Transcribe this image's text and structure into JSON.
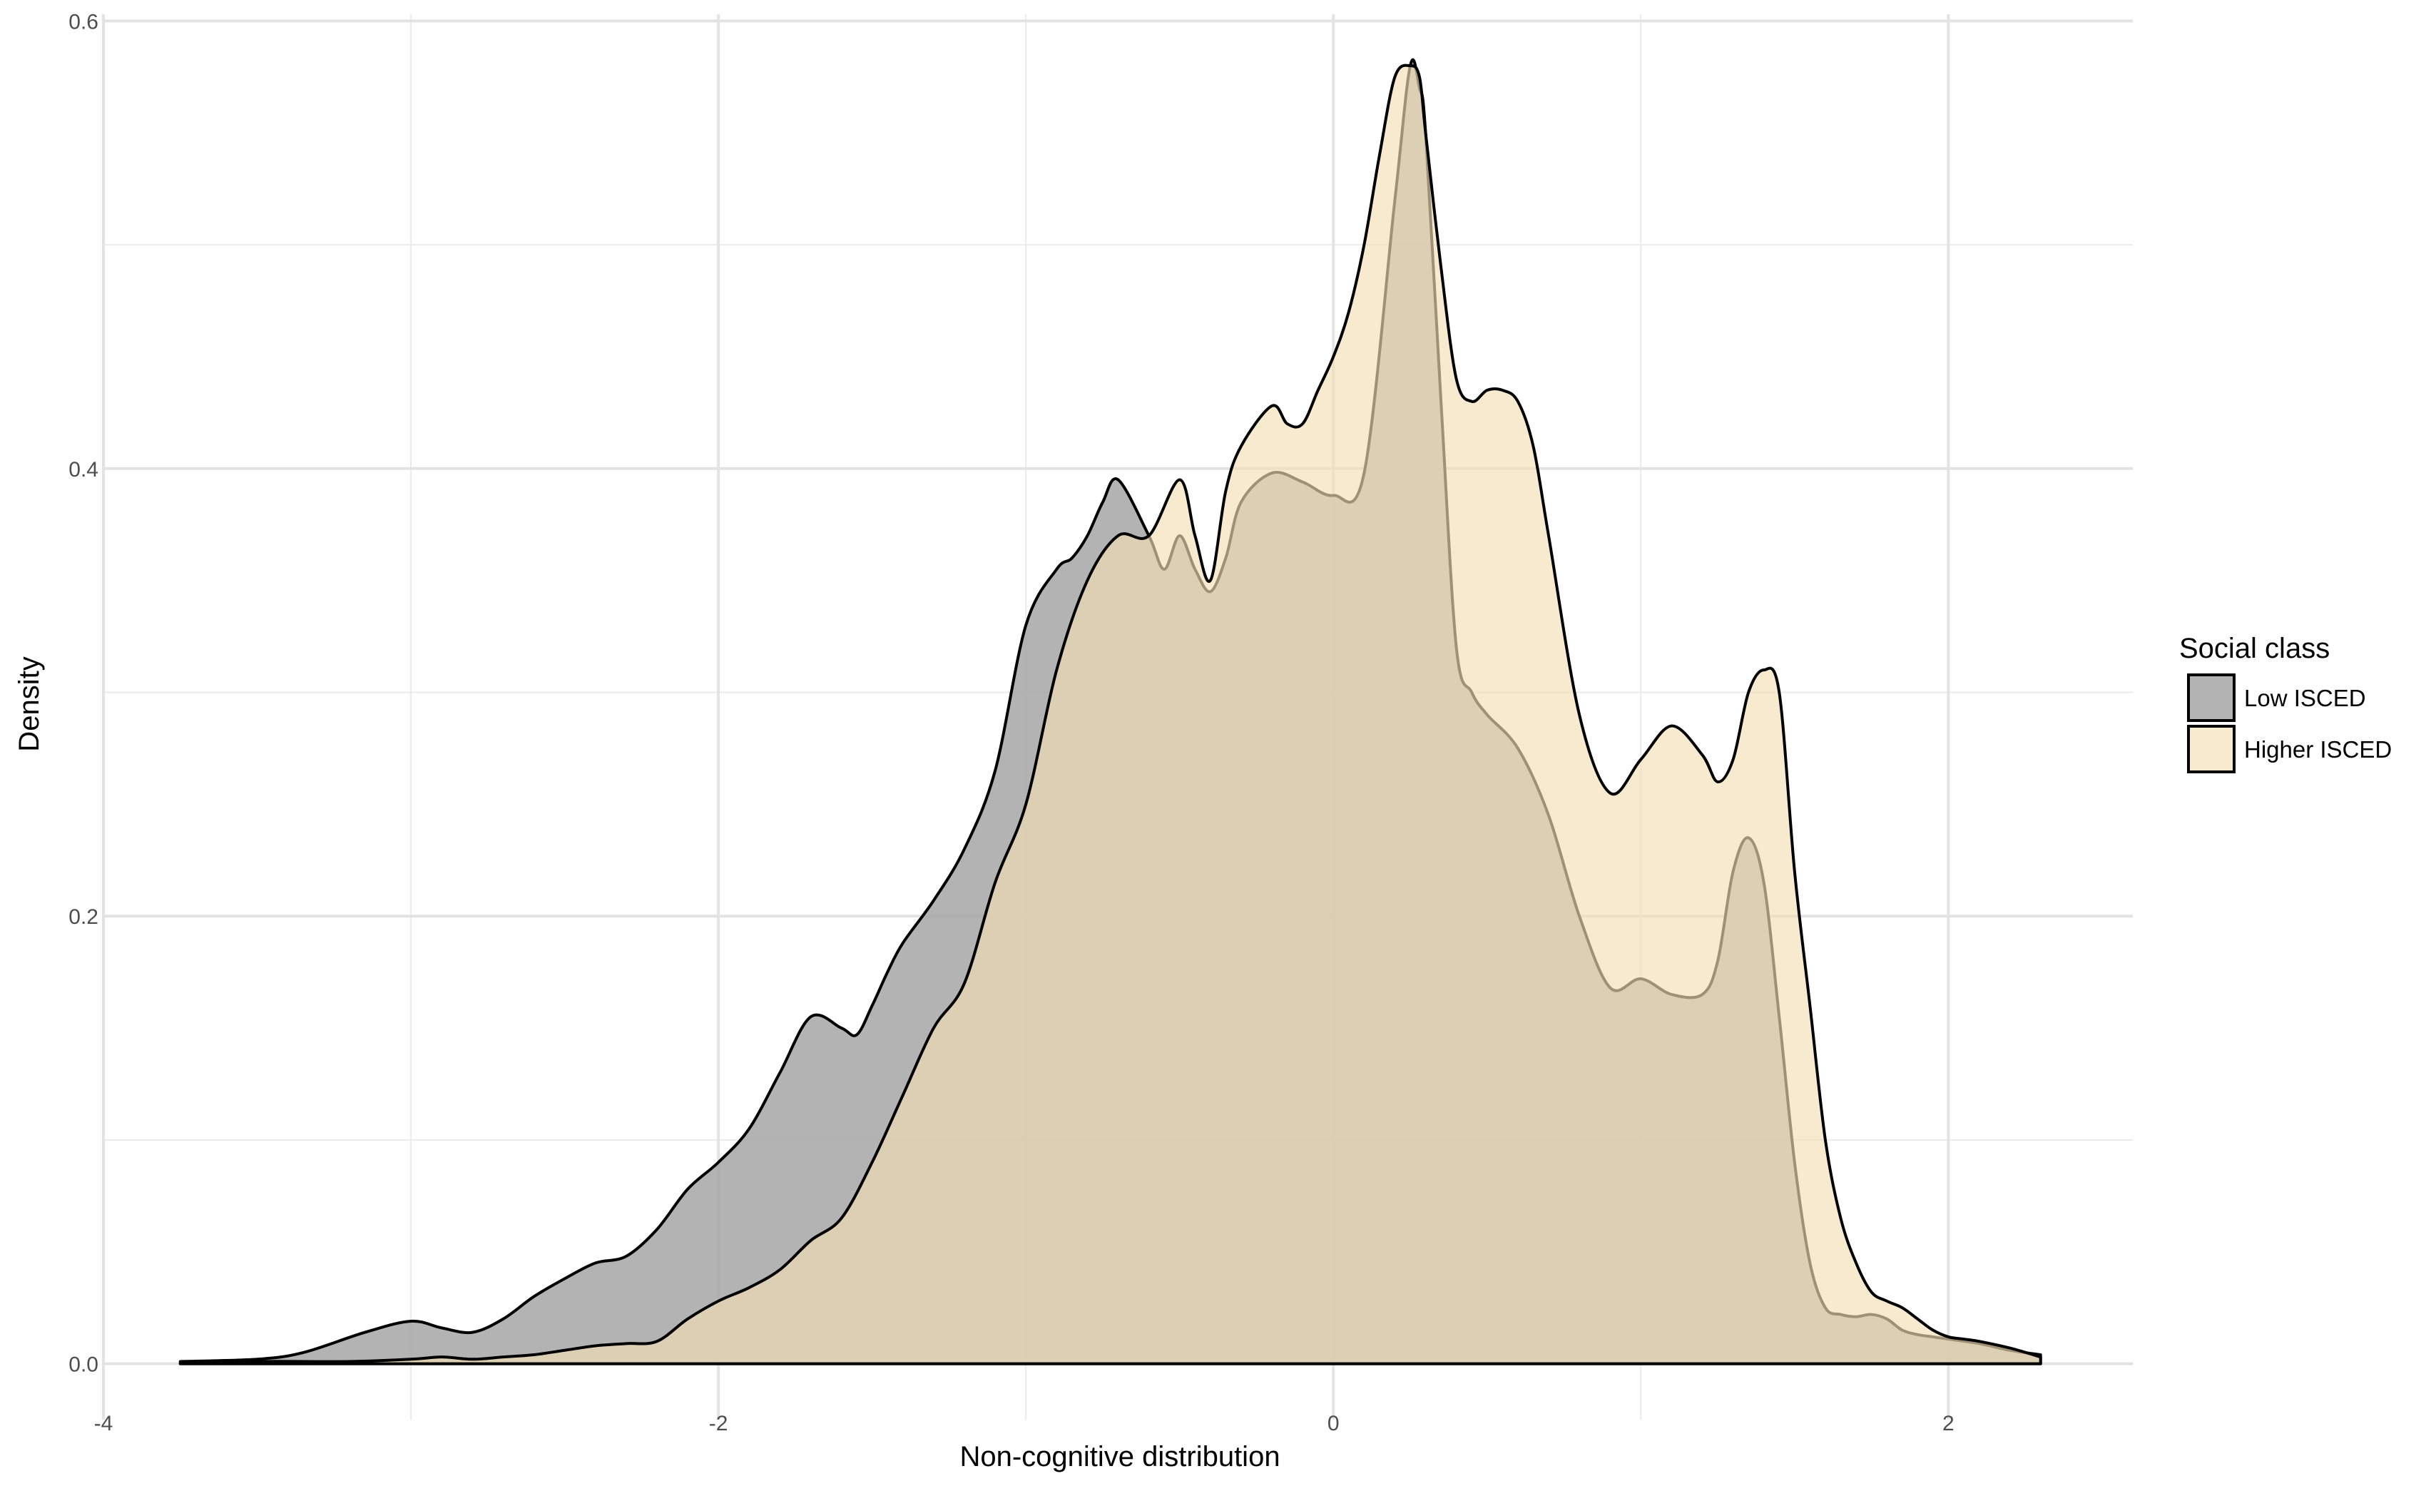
{
  "chart_data": {
    "type": "area",
    "title": "",
    "xlabel": "Non-cognitive distribution",
    "ylabel": "Density",
    "xlim": [
      -4,
      2.6
    ],
    "ylim": [
      -0.025,
      0.603
    ],
    "x_ticks": [
      -4,
      -2,
      0,
      2
    ],
    "x_tick_labels": [
      "-4",
      "-2",
      "0",
      "2"
    ],
    "y_ticks": [
      0.0,
      0.2,
      0.4,
      0.6
    ],
    "y_tick_labels": [
      "0.0",
      "0.2",
      "0.4",
      "0.6"
    ],
    "grid": true,
    "legend_position": "right",
    "legend_title": "Social class",
    "series": [
      {
        "name": "Low ISCED",
        "fill": "#a6a6a6",
        "fill_opacity": 0.85,
        "stroke": "#000000",
        "x": [
          -3.75,
          -3.5,
          -3.35,
          -3.15,
          -3.0,
          -2.9,
          -2.8,
          -2.7,
          -2.6,
          -2.5,
          -2.4,
          -2.3,
          -2.2,
          -2.1,
          -2.0,
          -1.9,
          -1.8,
          -1.7,
          -1.6,
          -1.55,
          -1.5,
          -1.45,
          -1.4,
          -1.3,
          -1.2,
          -1.1,
          -1.0,
          -0.9,
          -0.85,
          -0.8,
          -0.75,
          -0.7,
          -0.6,
          -0.55,
          -0.5,
          -0.45,
          -0.4,
          -0.35,
          -0.3,
          -0.2,
          -0.1,
          0.0,
          0.1,
          0.2,
          0.25,
          0.28,
          0.3,
          0.35,
          0.4,
          0.45,
          0.5,
          0.6,
          0.7,
          0.8,
          0.9,
          1.0,
          1.1,
          1.2,
          1.25,
          1.3,
          1.35,
          1.4,
          1.45,
          1.5,
          1.55,
          1.6,
          1.65,
          1.7,
          1.75,
          1.8,
          1.85,
          1.9,
          1.95,
          2.0,
          2.1,
          2.2,
          2.3
        ],
        "values": [
          0.001,
          0.002,
          0.005,
          0.014,
          0.019,
          0.016,
          0.014,
          0.02,
          0.03,
          0.038,
          0.045,
          0.048,
          0.06,
          0.078,
          0.09,
          0.105,
          0.13,
          0.155,
          0.15,
          0.147,
          0.16,
          0.175,
          0.188,
          0.207,
          0.23,
          0.265,
          0.33,
          0.355,
          0.36,
          0.37,
          0.385,
          0.395,
          0.37,
          0.355,
          0.37,
          0.355,
          0.345,
          0.36,
          0.385,
          0.398,
          0.394,
          0.388,
          0.398,
          0.52,
          0.58,
          0.57,
          0.55,
          0.43,
          0.32,
          0.3,
          0.29,
          0.275,
          0.245,
          0.2,
          0.168,
          0.172,
          0.165,
          0.165,
          0.18,
          0.22,
          0.235,
          0.215,
          0.155,
          0.09,
          0.045,
          0.025,
          0.022,
          0.021,
          0.022,
          0.02,
          0.015,
          0.013,
          0.012,
          0.011,
          0.009,
          0.006,
          0.004
        ]
      },
      {
        "name": "Higher ISCED",
        "fill": "#f5deb3",
        "fill_opacity": 0.65,
        "stroke": "#000000",
        "x": [
          -3.75,
          -3.5,
          -3.2,
          -3.0,
          -2.9,
          -2.8,
          -2.7,
          -2.6,
          -2.5,
          -2.4,
          -2.3,
          -2.2,
          -2.1,
          -2.0,
          -1.9,
          -1.8,
          -1.7,
          -1.6,
          -1.5,
          -1.4,
          -1.3,
          -1.2,
          -1.1,
          -1.0,
          -0.9,
          -0.8,
          -0.7,
          -0.6,
          -0.5,
          -0.45,
          -0.4,
          -0.35,
          -0.3,
          -0.2,
          -0.15,
          -0.1,
          -0.05,
          0.0,
          0.05,
          0.1,
          0.15,
          0.2,
          0.25,
          0.28,
          0.3,
          0.35,
          0.4,
          0.45,
          0.5,
          0.55,
          0.6,
          0.65,
          0.7,
          0.8,
          0.9,
          1.0,
          1.1,
          1.2,
          1.25,
          1.3,
          1.35,
          1.4,
          1.45,
          1.5,
          1.55,
          1.6,
          1.65,
          1.7,
          1.75,
          1.8,
          1.85,
          1.9,
          1.95,
          2.0,
          2.05,
          2.1,
          2.2,
          2.3
        ],
        "values": [
          0.0,
          0.001,
          0.001,
          0.002,
          0.003,
          0.002,
          0.003,
          0.004,
          0.006,
          0.008,
          0.009,
          0.01,
          0.02,
          0.028,
          0.034,
          0.042,
          0.055,
          0.065,
          0.09,
          0.12,
          0.15,
          0.17,
          0.215,
          0.25,
          0.31,
          0.35,
          0.37,
          0.37,
          0.395,
          0.37,
          0.35,
          0.39,
          0.41,
          0.428,
          0.42,
          0.42,
          0.435,
          0.45,
          0.47,
          0.5,
          0.54,
          0.575,
          0.58,
          0.575,
          0.55,
          0.49,
          0.44,
          0.43,
          0.435,
          0.435,
          0.43,
          0.41,
          0.37,
          0.29,
          0.255,
          0.27,
          0.285,
          0.272,
          0.26,
          0.27,
          0.3,
          0.31,
          0.3,
          0.22,
          0.16,
          0.1,
          0.065,
          0.045,
          0.032,
          0.028,
          0.025,
          0.02,
          0.015,
          0.012,
          0.011,
          0.01,
          0.007,
          0.003
        ]
      }
    ]
  }
}
